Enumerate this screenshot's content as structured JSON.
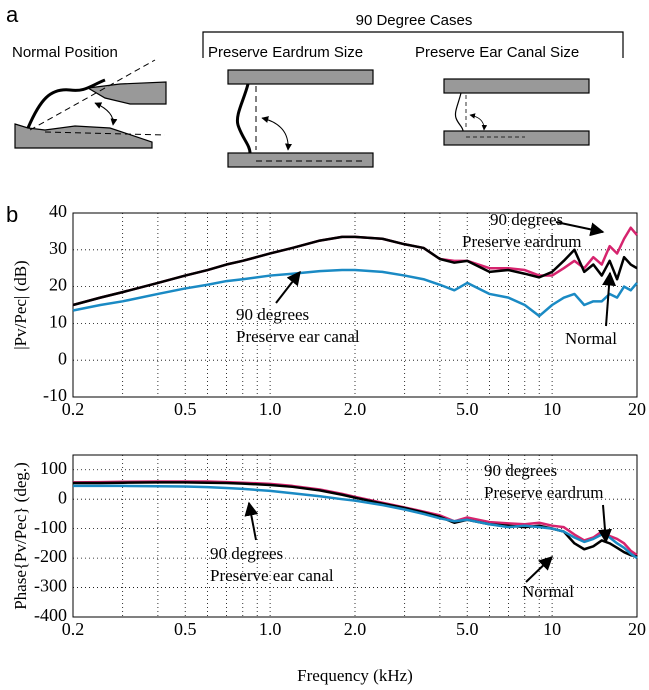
{
  "panel_labels": [
    "a",
    "b"
  ],
  "diagram": {
    "title": "90 Degree Cases",
    "labels": [
      "Normal Position",
      "Preserve Eardrum Size",
      "Preserve Ear Canal Size"
    ]
  },
  "chart_data": [
    {
      "type": "line",
      "ylabel": "|Pv/Pec| (dB)",
      "xlog": true,
      "grid": true,
      "x": [
        0.2,
        0.25,
        0.3,
        0.4,
        0.5,
        0.6,
        0.7,
        0.8,
        1.0,
        1.2,
        1.5,
        1.8,
        2.0,
        2.5,
        3.0,
        3.5,
        4.0,
        4.5,
        5.0,
        6.0,
        7.0,
        8.0,
        9.0,
        10,
        11,
        12,
        13,
        14,
        15,
        16,
        17,
        18,
        19,
        20
      ],
      "series": [
        {
          "color": "#d6246e",
          "values": [
            15,
            17,
            18.5,
            21,
            23,
            24.5,
            26,
            27,
            29,
            30.5,
            32.5,
            33.5,
            33.5,
            33,
            31.5,
            30.5,
            27.5,
            27,
            27,
            25,
            25,
            24.5,
            23,
            23,
            25,
            27,
            25,
            28,
            26,
            31,
            29,
            33,
            36,
            34
          ]
        },
        {
          "color": "#000000",
          "values": [
            15,
            17,
            18.5,
            21,
            23,
            24.5,
            26,
            27,
            29,
            30.5,
            32.5,
            33.5,
            33.5,
            33,
            31.5,
            30.5,
            27.5,
            26.5,
            27,
            24,
            24.5,
            23.5,
            22.5,
            24,
            27,
            30,
            24,
            26,
            23,
            27,
            22,
            28,
            26,
            25
          ]
        },
        {
          "color": "#1a8ac4",
          "values": [
            13.5,
            15,
            16,
            18,
            19.5,
            20.5,
            21.5,
            22,
            23,
            23.5,
            24.2,
            24.5,
            24.5,
            24,
            23,
            22,
            20.5,
            19,
            21,
            18,
            17,
            15,
            12,
            15,
            17,
            18,
            15,
            16,
            16,
            18,
            17,
            20,
            19,
            21
          ]
        }
      ],
      "xlim": [
        0.2,
        20
      ],
      "xticks": [
        0.2,
        0.5,
        {
          "value": 1,
          "label": "1.0"
        },
        {
          "value": 2,
          "label": "2.0"
        },
        {
          "value": 5,
          "label": "5.0"
        },
        10,
        20
      ],
      "xminorticks": [
        0.3,
        0.4,
        0.6,
        0.7,
        0.8,
        0.9,
        3,
        4,
        6,
        7,
        8,
        9
      ],
      "ylim": [
        -10,
        40
      ],
      "yticks": [
        -10,
        0,
        10,
        20,
        30,
        40
      ],
      "annotations": [
        [
          "90 degrees",
          "Preserve eardrum"
        ],
        [
          "90 degrees",
          "Preserve ear canal"
        ],
        [
          "Normal"
        ]
      ]
    },
    {
      "type": "line",
      "ylabel": "Phase{Pv/Pec} (deg.)",
      "xlabel": "Frequency (kHz)",
      "xlog": true,
      "grid": true,
      "x": [
        0.2,
        0.25,
        0.3,
        0.4,
        0.5,
        0.6,
        0.7,
        0.8,
        1.0,
        1.2,
        1.5,
        1.8,
        2.0,
        2.5,
        3.0,
        3.5,
        4.0,
        4.5,
        5.0,
        6.0,
        7.0,
        8.0,
        9.0,
        10,
        11,
        12,
        13,
        14,
        15,
        16,
        17,
        18,
        19,
        20
      ],
      "series": [
        {
          "color": "#d6246e",
          "values": [
            57,
            58,
            59,
            60,
            60,
            60,
            58,
            56,
            52,
            45,
            33,
            18,
            8,
            -12,
            -28,
            -42,
            -55,
            -75,
            -62,
            -78,
            -82,
            -85,
            -80,
            -90,
            -95,
            -120,
            -140,
            -130,
            -110,
            -125,
            -135,
            -150,
            -175,
            -190
          ]
        },
        {
          "color": "#000000",
          "values": [
            55,
            55,
            56,
            57,
            57,
            56,
            55,
            53,
            48,
            42,
            30,
            15,
            5,
            -15,
            -30,
            -45,
            -60,
            -80,
            -70,
            -85,
            -90,
            -95,
            -90,
            -100,
            -110,
            -150,
            -170,
            -160,
            -140,
            -150,
            -165,
            -180,
            -190,
            -195
          ]
        },
        {
          "color": "#1a8ac4",
          "values": [
            45,
            45,
            45,
            44,
            43,
            41,
            38,
            35,
            28,
            20,
            10,
            0,
            -5,
            -20,
            -35,
            -50,
            -65,
            -75,
            -70,
            -85,
            -95,
            -90,
            -95,
            -100,
            -110,
            -130,
            -145,
            -135,
            -120,
            -130,
            -150,
            -165,
            -185,
            -200
          ]
        }
      ],
      "xlim": [
        0.2,
        20
      ],
      "xticks": [
        0.2,
        0.5,
        {
          "value": 1,
          "label": "1.0"
        },
        {
          "value": 2,
          "label": "2.0"
        },
        {
          "value": 5,
          "label": "5.0"
        },
        10,
        20
      ],
      "xminorticks": [
        0.3,
        0.4,
        0.6,
        0.7,
        0.8,
        0.9,
        3,
        4,
        6,
        7,
        8,
        9
      ],
      "ylim": [
        -400,
        150
      ],
      "yticks": [
        -400,
        -300,
        -200,
        -100,
        0,
        100
      ],
      "annotations": [
        [
          "90 degrees",
          "Preserve eardrum"
        ],
        [
          "90 degrees",
          "Preserve ear canal"
        ],
        [
          "Normal"
        ]
      ]
    }
  ]
}
